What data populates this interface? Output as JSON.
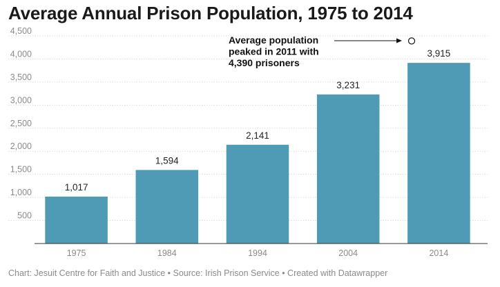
{
  "chart_data": {
    "type": "bar",
    "title": "Average Annual Prison Population, 1975 to 2014",
    "categories": [
      "1975",
      "1984",
      "1994",
      "2004",
      "2014"
    ],
    "values": [
      1017,
      1594,
      2141,
      3231,
      3915
    ],
    "value_labels": [
      "1,017",
      "1,594",
      "2,141",
      "3,231",
      "3,915"
    ],
    "ylim": [
      0,
      4500
    ],
    "y_ticks": [
      500,
      1000,
      1500,
      2000,
      2500,
      3000,
      3500,
      4000,
      4500
    ],
    "y_tick_labels": [
      "500",
      "1,000",
      "1,500",
      "2,000",
      "2,500",
      "3,000",
      "3,500",
      "4,000",
      "4,500"
    ],
    "grid": true,
    "bar_color": "#4f9ab4",
    "annotation": {
      "lines": [
        "Average population",
        "peaked in 2011 with",
        "4,390 prisoners"
      ],
      "x": 2011,
      "value": 4390
    },
    "footer": "Chart: Jesuit Centre for Faith and Justice • Source: Irish Prison Service • Created with Datawrapper"
  }
}
